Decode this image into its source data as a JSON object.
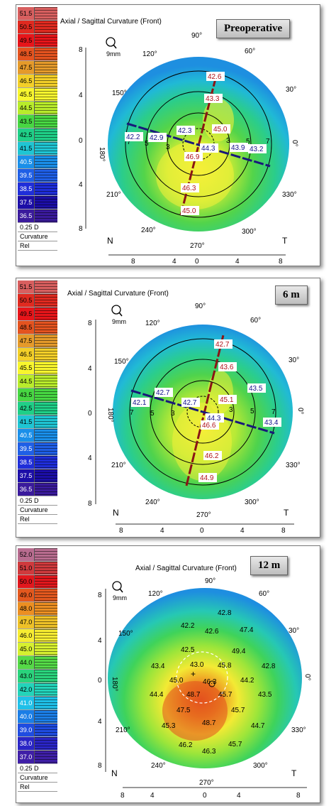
{
  "panels": [
    {
      "title": "Axial / Sagittal Curvature (Front)",
      "badge": "Preoperative",
      "scale": [
        "51.5",
        "50.5",
        "49.5",
        "48.5",
        "47.5",
        "46.5",
        "45.5",
        "44.5",
        "43.5",
        "42.5",
        "41.5",
        "40.5",
        "39.5",
        "38.5",
        "37.5",
        "36.5"
      ],
      "step": "0.25 D",
      "mode": "Curvature",
      "rel": "Rel",
      "zoom": "9mm",
      "axis_left": [
        "8",
        "4",
        "0",
        "4",
        "8"
      ],
      "axis_bottom": [
        "8",
        "4",
        "0",
        "4",
        "8"
      ],
      "angles": [
        "90°",
        "120°",
        "60°",
        "150°",
        "30°",
        "180°",
        "0°",
        "210°",
        "330°",
        "240°",
        "300°",
        "270°"
      ],
      "nasal": "N",
      "temporal": "T",
      "ring_labels": [
        "7",
        "5",
        "3",
        "3",
        "5",
        "7"
      ],
      "values_steep": [
        "42.6",
        "43.3",
        "45.0",
        "46.9",
        "46.3",
        "45.0"
      ],
      "values_flat": [
        "42.2",
        "42.9",
        "42.3",
        "44.3",
        "43.9",
        "43.2"
      ]
    },
    {
      "title": "Axial / Sagittal Curvature (Front)",
      "badge": "6 m",
      "scale": [
        "51.5",
        "50.5",
        "49.5",
        "48.5",
        "47.5",
        "46.5",
        "45.5",
        "44.5",
        "43.5",
        "42.5",
        "41.5",
        "40.5",
        "39.5",
        "38.5",
        "37.5",
        "36.5"
      ],
      "step": "0.25 D",
      "mode": "Curvature",
      "rel": "Rel",
      "zoom": "9mm",
      "axis_left": [
        "8",
        "4",
        "0",
        "4",
        "8"
      ],
      "axis_bottom": [
        "8",
        "4",
        "0",
        "4",
        "8"
      ],
      "angles": [
        "90°",
        "120°",
        "60°",
        "150°",
        "30°",
        "180°",
        "0°",
        "210°",
        "330°",
        "240°",
        "300°",
        "270°"
      ],
      "nasal": "N",
      "temporal": "T",
      "ring_labels": [
        "7",
        "5",
        "3",
        "3",
        "5",
        "7"
      ],
      "values_steep": [
        "42.7",
        "43.6",
        "45.1",
        "46.6",
        "46.2",
        "44.9"
      ],
      "values_flat": [
        "42.1",
        "42.7",
        "42.7",
        "44.3",
        "43.5",
        "43.4"
      ]
    },
    {
      "title": "Axial / Sagittal Curvature (Front)",
      "badge": "12 m",
      "scale": [
        "52.0",
        "51.0",
        "50.0",
        "49.0",
        "48.0",
        "47.0",
        "46.0",
        "45.0",
        "44.0",
        "43.0",
        "42.0",
        "41.0",
        "40.0",
        "39.0",
        "38.0",
        "37.0"
      ],
      "step": "0.25 D",
      "mode": "Curvature",
      "rel": "Rel",
      "zoom": "9mm",
      "axis_left": [
        "8",
        "4",
        "0",
        "4",
        "8"
      ],
      "axis_bottom": [
        "8",
        "4",
        "0",
        "4",
        "8"
      ],
      "angles": [
        "90°",
        "120°",
        "60°",
        "150°",
        "30°",
        "180°",
        "0°",
        "210°",
        "330°",
        "240°",
        "300°",
        "270°"
      ],
      "nasal": "N",
      "temporal": "T",
      "grid_values": [
        "42.8",
        "42.2",
        "42.6",
        "47.4",
        "42.5",
        "49.4",
        "43.4",
        "43.0",
        "45.8",
        "42.8",
        "44.4",
        "45.0",
        "46.3",
        "44.2",
        "48.7",
        "45.7",
        "43.5",
        "47.5",
        "45.7",
        "45.3",
        "48.7",
        "44.7",
        "46.2",
        "45.7",
        "46.3"
      ]
    }
  ],
  "colors": {
    "scale_a": [
      "#d85f5f",
      "#e02a20",
      "#e7151a",
      "#e4531f",
      "#e59a2a",
      "#f3cf28",
      "#f8f62e",
      "#b8ec2b",
      "#47d742",
      "#1fcf87",
      "#1fc5d3",
      "#1a8fe9",
      "#1f5fe6",
      "#1f2ed9",
      "#1c0ea7",
      "#3a1a9c",
      "#6e2fb9",
      "#9d48c7",
      "#c05fd8",
      "#cf7fdf"
    ],
    "scale_b": [
      "#b86c8f",
      "#cf3a3d",
      "#e2171d",
      "#e3581e",
      "#ec8f22",
      "#eec128",
      "#f7ec32",
      "#d7f030",
      "#55d947",
      "#2ad37c",
      "#23d4ba",
      "#1fc0e8",
      "#1b7ee6",
      "#1f4ce0",
      "#2a25c6",
      "#3f1fa7",
      "#6124b6",
      "#8c3ec3",
      "#b459d2",
      "#c97adb"
    ]
  }
}
